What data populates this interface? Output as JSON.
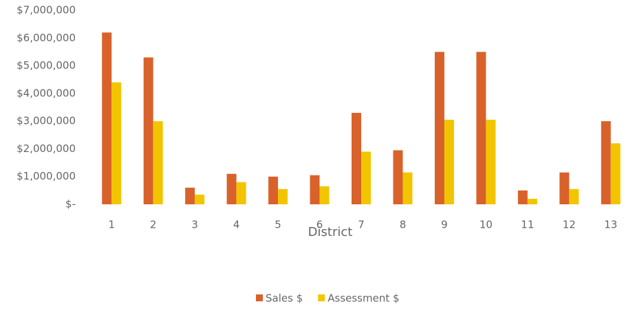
{
  "chart_data": {
    "type": "bar",
    "x_label": "District",
    "categories": [
      "1",
      "2",
      "3",
      "4",
      "5",
      "6",
      "7",
      "8",
      "9",
      "10",
      "11",
      "12",
      "13"
    ],
    "series": [
      {
        "name": "Sales $",
        "color": "#d9622b",
        "values": [
          6200000,
          5300000,
          600000,
          1100000,
          1000000,
          1050000,
          3300000,
          1950000,
          5500000,
          5500000,
          500000,
          1150000,
          3000000
        ]
      },
      {
        "name": "Assessment $",
        "color": "#f2c500",
        "values": [
          4400000,
          3000000,
          350000,
          800000,
          550000,
          650000,
          1900000,
          1150000,
          3050000,
          3050000,
          200000,
          550000,
          2200000
        ]
      }
    ],
    "ylim": [
      0,
      7000000
    ],
    "yticks": [
      {
        "value": 0,
        "label": "$-"
      },
      {
        "value": 1000000,
        "label": "$1,000,000"
      },
      {
        "value": 2000000,
        "label": "$2,000,000"
      },
      {
        "value": 3000000,
        "label": "$3,000,000"
      },
      {
        "value": 4000000,
        "label": "$4,000,000"
      },
      {
        "value": 5000000,
        "label": "$5,000,000"
      },
      {
        "value": 6000000,
        "label": "$6,000,000"
      },
      {
        "value": 7000000,
        "label": "$7,000,000"
      }
    ],
    "grid": false,
    "legend": "bottom"
  }
}
